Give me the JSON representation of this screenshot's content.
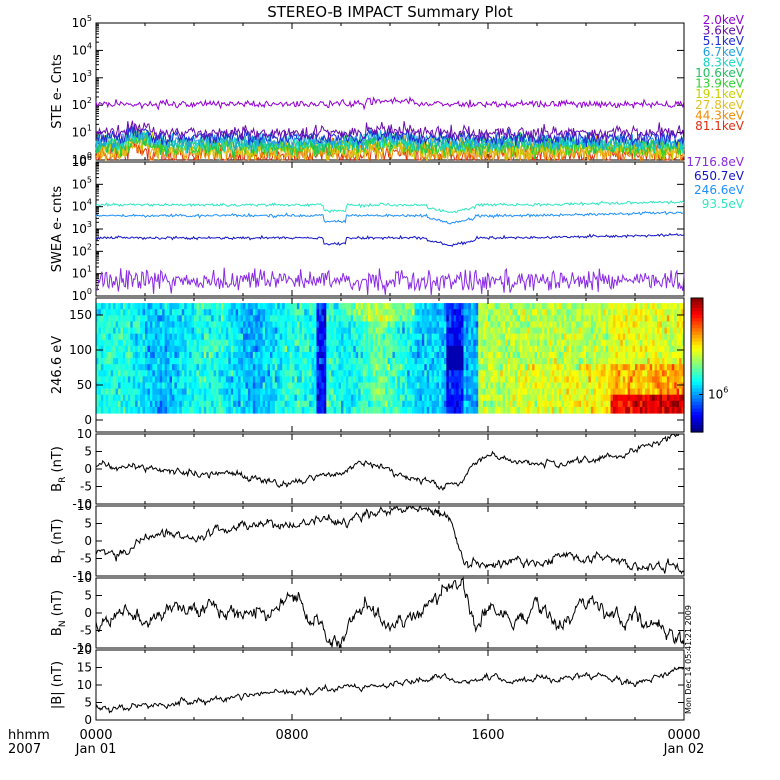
{
  "title": "STEREO-B IMPACT Summary Plot",
  "side_stamp": "Mon Dec 14 05:41:21 2009",
  "time_axis": {
    "corner_labels": [
      "hhmm",
      "2007"
    ],
    "ticks": [
      {
        "hhmm": "0000",
        "date": "Jan 01"
      },
      {
        "hhmm": "0800",
        "date": ""
      },
      {
        "hhmm": "1600",
        "date": ""
      },
      {
        "hhmm": "0000",
        "date": "Jan 02"
      }
    ],
    "range_hours": [
      0,
      24
    ]
  },
  "colors": {
    "ste": [
      "#9400d3",
      "#6a0dad",
      "#1f2bd6",
      "#1f9fe0",
      "#16d6c8",
      "#20c060",
      "#2fd12f",
      "#c8d000",
      "#e0c020",
      "#f08c00",
      "#e03010"
    ],
    "swea": [
      "#8a2be2",
      "#1515c8",
      "#1e90ff",
      "#2ee8c0"
    ],
    "mag": "#000000"
  },
  "chart_data": [
    {
      "type": "line",
      "name": "ste",
      "ylabel": "STE e- Cnts",
      "yscale": "log",
      "ylim": [
        1,
        100000
      ],
      "ytick_exponents": [
        0,
        1,
        2,
        3,
        4,
        5
      ],
      "series": [
        {
          "name": "2.0keV",
          "base": 110,
          "noise": 0.06
        },
        {
          "name": "3.6keV",
          "base": 10,
          "noise": 0.12
        },
        {
          "name": "5.1keV",
          "base": 6.5,
          "noise": 0.12
        },
        {
          "name": "6.7keV",
          "base": 5,
          "noise": 0.14
        },
        {
          "name": "8.3keV",
          "base": 4.2,
          "noise": 0.15
        },
        {
          "name": "10.6keV",
          "base": 3.6,
          "noise": 0.16
        },
        {
          "name": "13.9keV",
          "base": 3.1,
          "noise": 0.17
        },
        {
          "name": "19.1keV",
          "base": 2.7,
          "noise": 0.18
        },
        {
          "name": "27.8keV",
          "base": 2.3,
          "noise": 0.19
        },
        {
          "name": "44.3keV",
          "base": 1.9,
          "noise": 0.2
        },
        {
          "name": "81.1keV",
          "base": 1.5,
          "noise": 0.22
        }
      ]
    },
    {
      "type": "line",
      "name": "swea",
      "ylabel": "SWEA e- cnts",
      "yscale": "log",
      "ylim": [
        1,
        1000000
      ],
      "ytick_exponents": [
        0,
        1,
        2,
        3,
        4,
        5,
        6
      ],
      "series": [
        {
          "name": "1716.8eV",
          "base": 5,
          "noise": 0.22
        },
        {
          "name": "650.7eV",
          "base": 400,
          "noise": 0.03
        },
        {
          "name": "246.6eV",
          "base": 4000,
          "noise": 0.03
        },
        {
          "name": "93.5eV",
          "base": 12000,
          "noise": 0.03
        }
      ]
    },
    {
      "type": "heatmap",
      "name": "pitch",
      "ylabel": "246.6 eV",
      "ylim": [
        0,
        180
      ],
      "yticks": [
        0,
        50,
        100,
        150
      ],
      "colorbar_label": "10",
      "colorbar_exponent": "6"
    },
    {
      "type": "line",
      "name": "br",
      "ylabel": "B",
      "ylabel_sub": "R",
      "ylabel_unit": " (nT)",
      "ylim": [
        -10,
        10
      ],
      "yticks": [
        10,
        5,
        0,
        -5,
        -10
      ],
      "keypoints": [
        [
          0,
          1
        ],
        [
          2,
          0
        ],
        [
          4,
          -1
        ],
        [
          6,
          -2
        ],
        [
          7,
          -3
        ],
        [
          8,
          -4
        ],
        [
          9,
          -2
        ],
        [
          10,
          -1
        ],
        [
          11,
          2
        ],
        [
          12,
          -1
        ],
        [
          13,
          -3
        ],
        [
          14,
          -5
        ],
        [
          15,
          -3
        ],
        [
          15.5,
          3
        ],
        [
          16,
          4
        ],
        [
          17,
          2
        ],
        [
          18,
          2
        ],
        [
          19,
          1
        ],
        [
          20,
          2
        ],
        [
          21,
          3
        ],
        [
          22,
          5
        ],
        [
          23,
          8
        ],
        [
          24,
          10
        ]
      ]
    },
    {
      "type": "line",
      "name": "bt",
      "ylabel": "B",
      "ylabel_sub": "T",
      "ylabel_unit": " (nT)",
      "ylim": [
        -10,
        10
      ],
      "yticks": [
        10,
        5,
        0,
        -5,
        -10
      ],
      "keypoints": [
        [
          0,
          -3
        ],
        [
          1,
          -4
        ],
        [
          2,
          0
        ],
        [
          3,
          2
        ],
        [
          4,
          1
        ],
        [
          5,
          3
        ],
        [
          6,
          4
        ],
        [
          7,
          5
        ],
        [
          8,
          4
        ],
        [
          9,
          6
        ],
        [
          10,
          5
        ],
        [
          11,
          7
        ],
        [
          12,
          9
        ],
        [
          13,
          10
        ],
        [
          14,
          8
        ],
        [
          14.5,
          5
        ],
        [
          15,
          -6
        ],
        [
          16,
          -8
        ],
        [
          17,
          -5
        ],
        [
          18,
          -7
        ],
        [
          19,
          -4
        ],
        [
          20,
          -6
        ],
        [
          21,
          -5
        ],
        [
          22,
          -8
        ],
        [
          23,
          -7
        ],
        [
          24,
          -8
        ]
      ]
    },
    {
      "type": "line",
      "name": "bn",
      "ylabel": "B",
      "ylabel_sub": "N",
      "ylabel_unit": " (nT)",
      "ylim": [
        -10,
        10
      ],
      "yticks": [
        10,
        5,
        0,
        -5,
        -10
      ],
      "keypoints": [
        [
          0,
          -3
        ],
        [
          1,
          -1
        ],
        [
          2,
          -3
        ],
        [
          3,
          1
        ],
        [
          4,
          2
        ],
        [
          5,
          0
        ],
        [
          6,
          1
        ],
        [
          7,
          0
        ],
        [
          8,
          5
        ],
        [
          9,
          -2
        ],
        [
          10,
          -8
        ],
        [
          11,
          3
        ],
        [
          12,
          -5
        ],
        [
          13,
          0
        ],
        [
          14,
          5
        ],
        [
          15,
          8
        ],
        [
          15.5,
          -5
        ],
        [
          16,
          2
        ],
        [
          17,
          -3
        ],
        [
          18,
          2
        ],
        [
          19,
          -4
        ],
        [
          20,
          3
        ],
        [
          21,
          0
        ],
        [
          22,
          -2
        ],
        [
          23,
          -3
        ],
        [
          24,
          -9
        ]
      ]
    },
    {
      "type": "line",
      "name": "bmag",
      "ylabel": "|B| (nT)",
      "ylim": [
        0,
        20
      ],
      "yticks": [
        20,
        15,
        10,
        5,
        0
      ],
      "keypoints": [
        [
          0,
          3
        ],
        [
          2,
          4
        ],
        [
          4,
          5
        ],
        [
          6,
          7
        ],
        [
          8,
          8
        ],
        [
          10,
          9
        ],
        [
          12,
          10
        ],
        [
          13,
          11
        ],
        [
          14,
          12
        ],
        [
          15,
          11
        ],
        [
          16,
          12
        ],
        [
          17,
          11
        ],
        [
          18,
          12
        ],
        [
          19,
          12
        ],
        [
          20,
          13
        ],
        [
          21,
          12
        ],
        [
          22,
          10
        ],
        [
          23,
          13
        ],
        [
          24,
          15
        ]
      ]
    }
  ]
}
